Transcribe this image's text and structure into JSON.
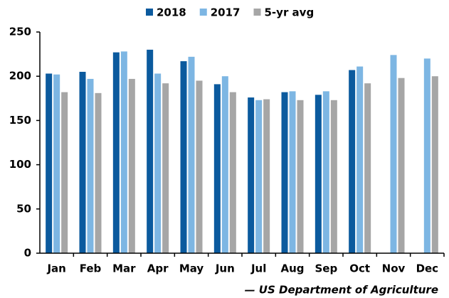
{
  "chart_data": {
    "type": "bar",
    "categories": [
      "Jan",
      "Feb",
      "Mar",
      "Apr",
      "May",
      "Jun",
      "Jul",
      "Aug",
      "Sep",
      "Oct",
      "Nov",
      "Dec"
    ],
    "series": [
      {
        "name": "2018",
        "color": "#0b5a9e",
        "values": [
          203,
          205,
          227,
          230,
          217,
          191,
          176,
          182,
          179,
          207,
          null,
          null
        ]
      },
      {
        "name": "2017",
        "color": "#7db6e3",
        "values": [
          202,
          197,
          228,
          203,
          222,
          200,
          173,
          183,
          183,
          211,
          224,
          220
        ]
      },
      {
        "name": "5-yr avg",
        "color": "#a6a6a6",
        "values": [
          182,
          181,
          197,
          192,
          195,
          182,
          174,
          173,
          173,
          192,
          198,
          200
        ]
      }
    ],
    "ylim": [
      0,
      250
    ],
    "yticks": [
      0,
      50,
      100,
      150,
      200,
      250
    ],
    "source": "— US Department of Agriculture"
  }
}
